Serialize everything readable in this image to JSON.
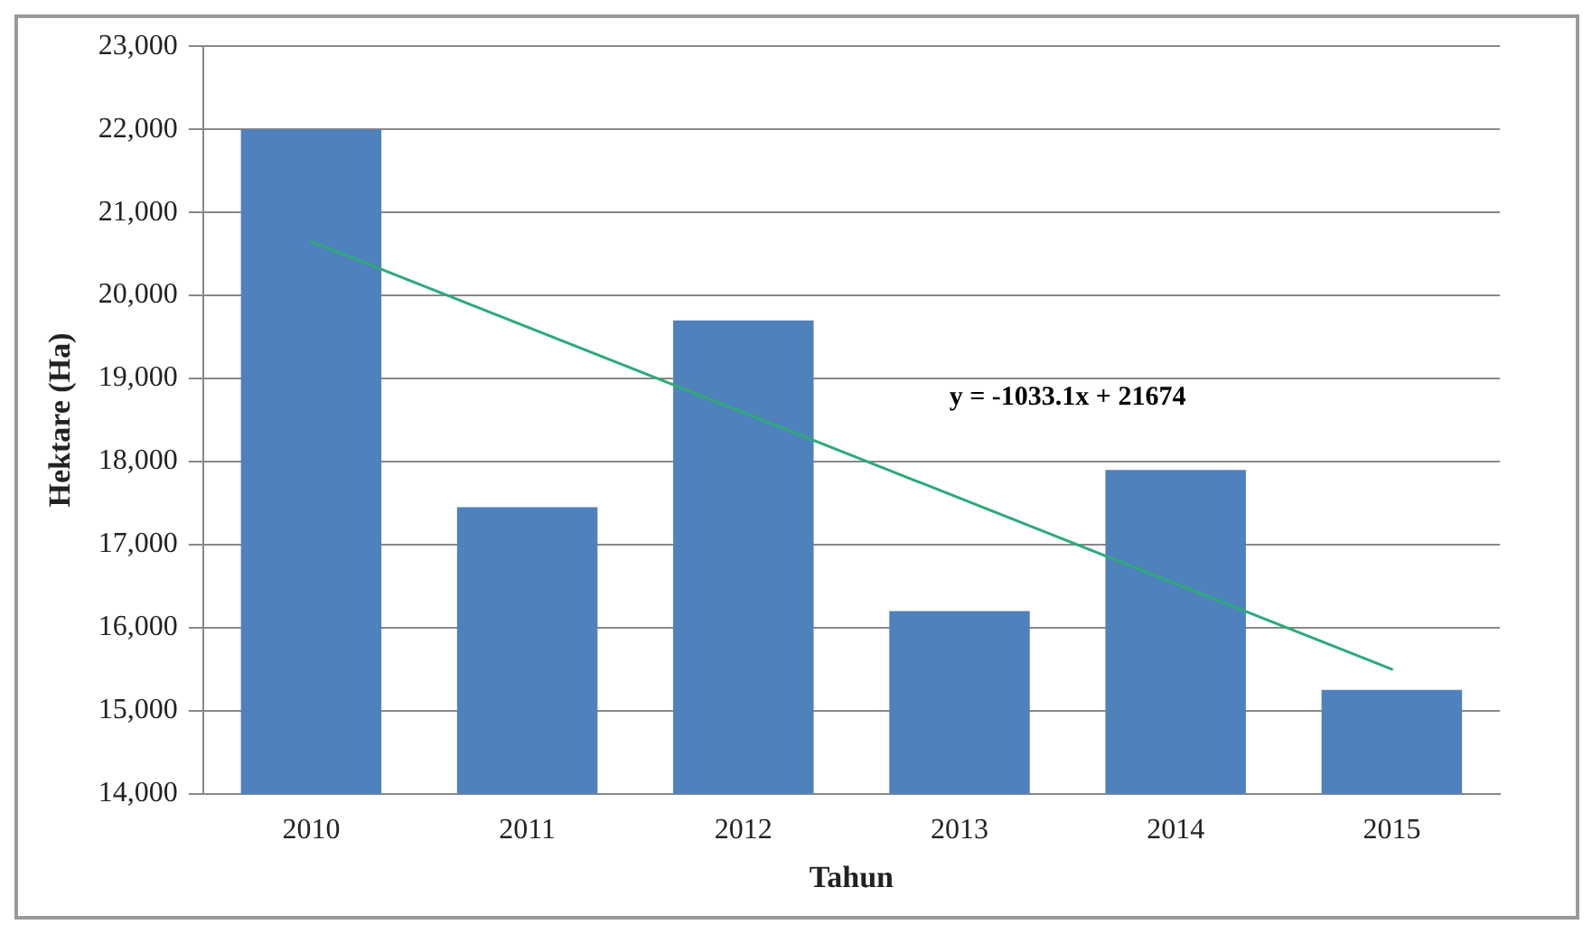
{
  "chart_data": {
    "type": "bar",
    "xlabel": "Tahun",
    "ylabel": "Hektare (Ha)",
    "categories": [
      "2010",
      "2011",
      "2012",
      "2013",
      "2014",
      "2015"
    ],
    "series": [
      {
        "color": "#4f81bd",
        "values": [
          22000,
          17450,
          19700,
          16200,
          17900,
          15250
        ]
      },
      {
        "type": "line",
        "color": "#2eaa7a",
        "values": [
          20650,
          null,
          null,
          null,
          null,
          15500
        ]
      }
    ],
    "ylim": [
      14000,
      23000
    ],
    "yticks": [
      {
        "value": 14000,
        "label": "14,000"
      },
      {
        "value": 15000,
        "label": "15,000"
      },
      {
        "value": 16000,
        "label": "16,000"
      },
      {
        "value": 17000,
        "label": "17,000"
      },
      {
        "value": 18000,
        "label": "18,000"
      },
      {
        "value": 19000,
        "label": "19,000"
      },
      {
        "value": 20000,
        "label": "20,000"
      },
      {
        "value": 21000,
        "label": "21,000"
      },
      {
        "value": 22000,
        "label": "22,000"
      },
      {
        "value": 23000,
        "label": "23,000"
      }
    ],
    "grid": "y",
    "legend": false,
    "annotations": [
      "y = -1033.1x + 21674"
    ]
  }
}
